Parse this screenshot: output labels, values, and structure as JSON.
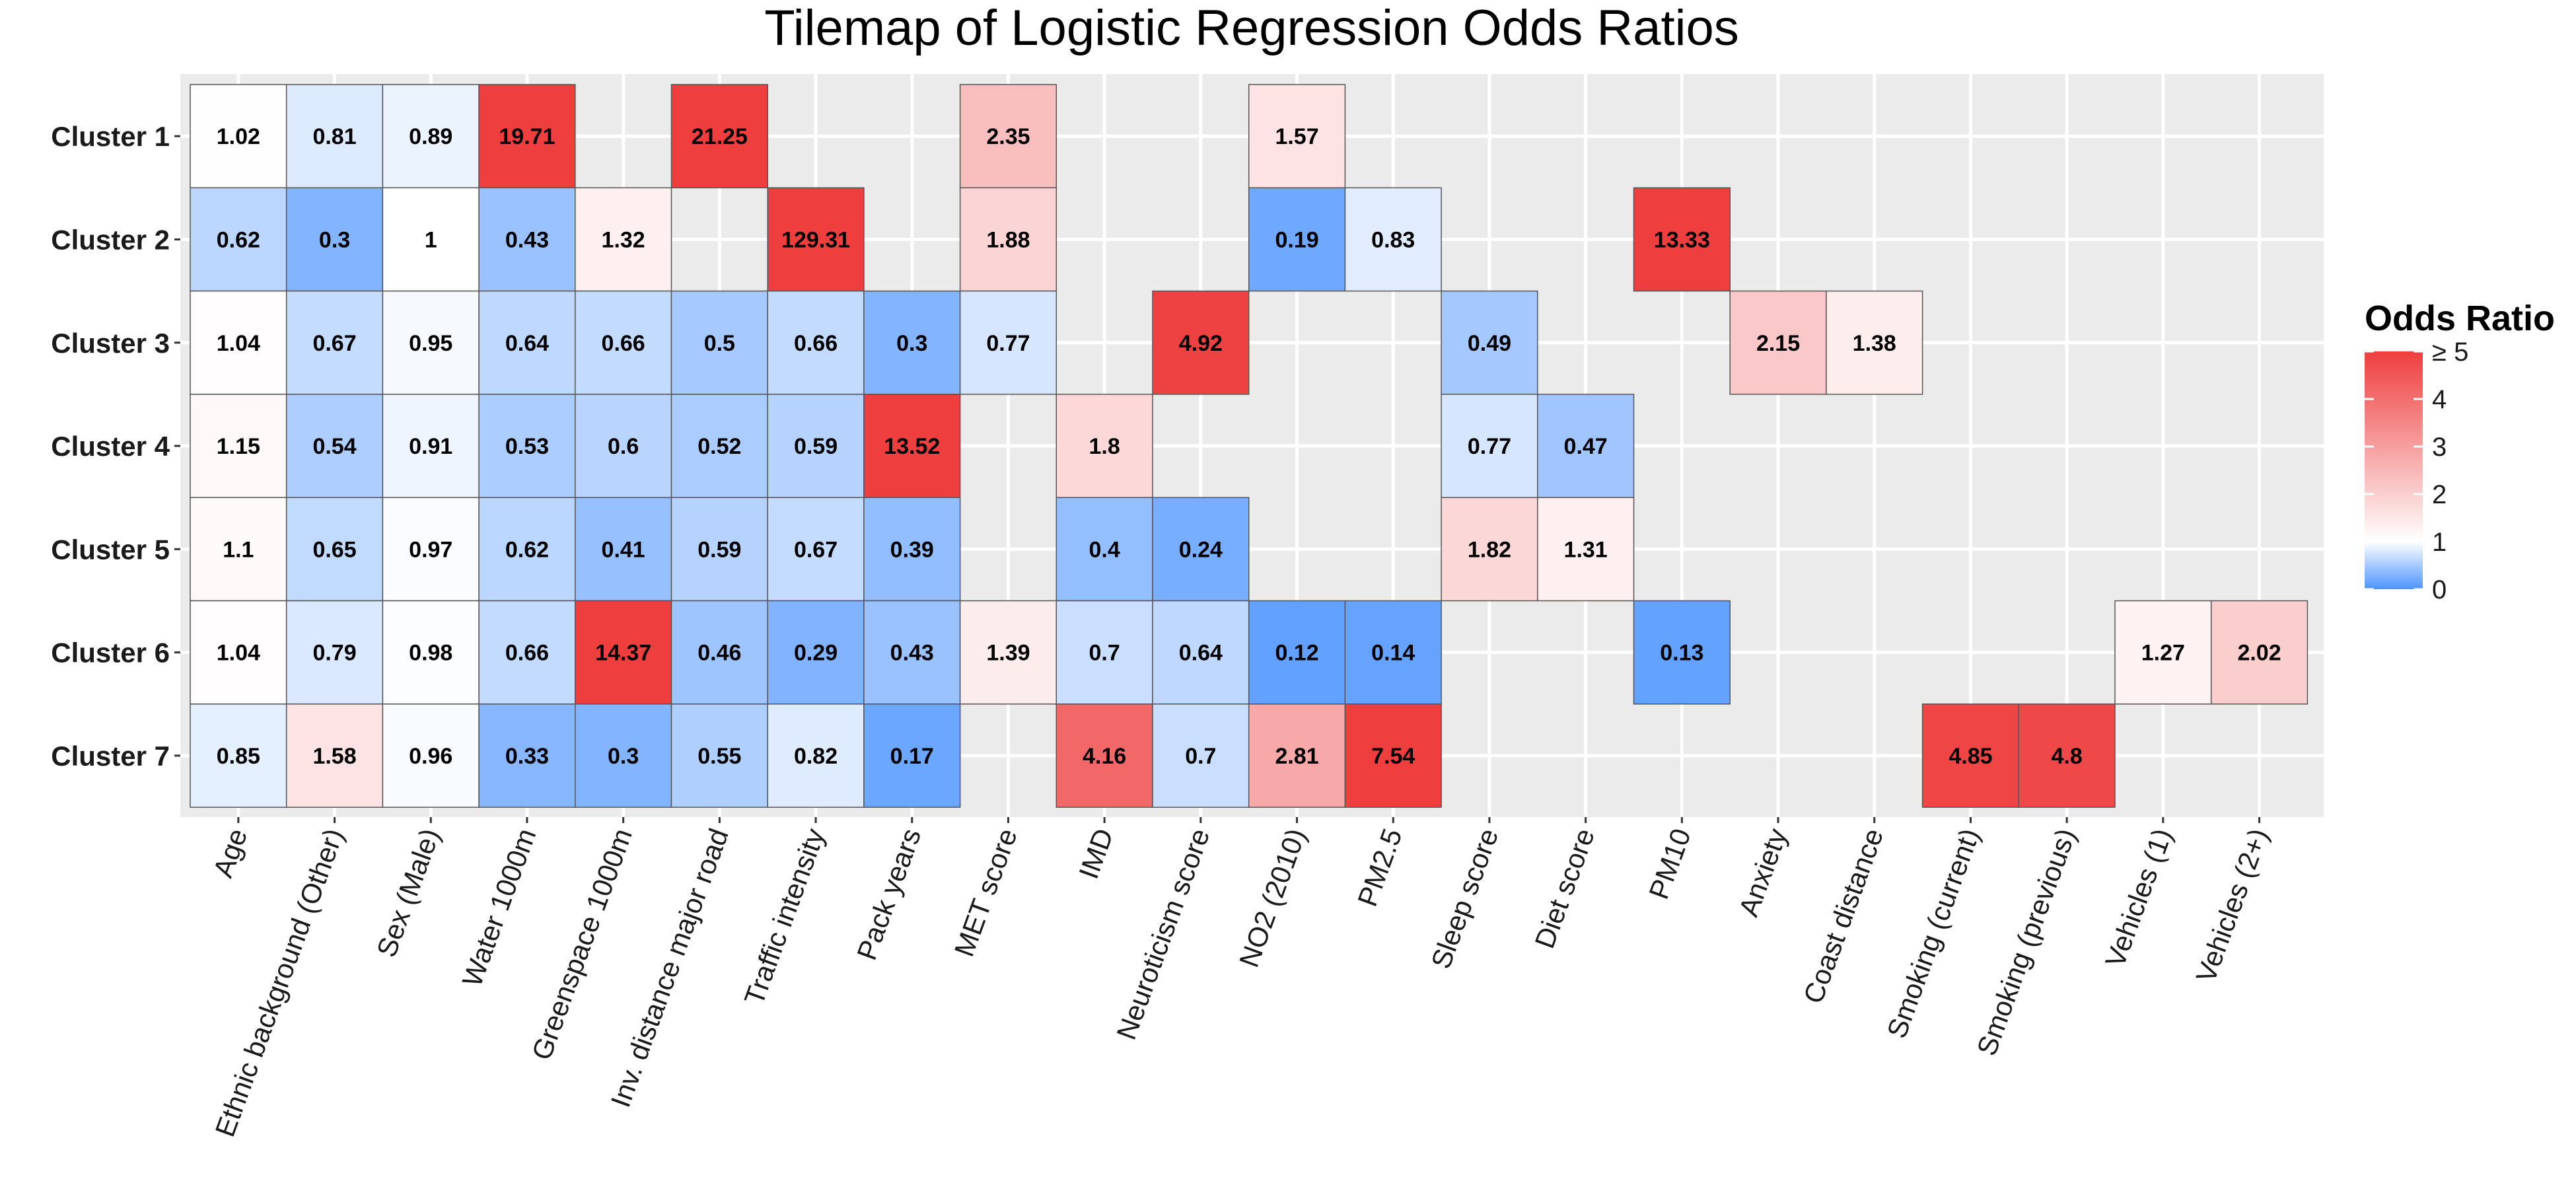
{
  "chart_data": {
    "type": "heatmap",
    "title": "Tilemap of Logistic Regression Odds Ratios",
    "xlabel": "",
    "ylabel": "",
    "rows": [
      "Cluster 1",
      "Cluster 2",
      "Cluster 3",
      "Cluster 4",
      "Cluster 5",
      "Cluster 6",
      "Cluster 7"
    ],
    "columns": [
      "Age",
      "Ethnic background (Other)",
      "Sex (Male)",
      "Water 1000m",
      "Greenspace 1000m",
      "Inv. distance major road",
      "Traffic intensity",
      "Pack years",
      "MET score",
      "IMD",
      "Neuroticism score",
      "NO2 (2010)",
      "PM2.5",
      "Sleep score",
      "Diet score",
      "PM10",
      "Anxiety",
      "Coast distance",
      "Smoking (current)",
      "Smoking (previous)",
      "Vehicles (1)",
      "Vehicles (2+)"
    ],
    "cells": [
      {
        "row": "Cluster 1",
        "col": "Age",
        "value": 1.02,
        "label": "1.02"
      },
      {
        "row": "Cluster 1",
        "col": "Ethnic background (Other)",
        "value": 0.81,
        "label": "0.81"
      },
      {
        "row": "Cluster 1",
        "col": "Sex (Male)",
        "value": 0.89,
        "label": "0.89"
      },
      {
        "row": "Cluster 1",
        "col": "Water 1000m",
        "value": 19.71,
        "label": "19.71"
      },
      {
        "row": "Cluster 1",
        "col": "Inv. distance major road",
        "value": 21.25,
        "label": "21.25"
      },
      {
        "row": "Cluster 1",
        "col": "MET score",
        "value": 2.35,
        "label": "2.35"
      },
      {
        "row": "Cluster 1",
        "col": "NO2 (2010)",
        "value": 1.57,
        "label": "1.57"
      },
      {
        "row": "Cluster 2",
        "col": "Age",
        "value": 0.62,
        "label": "0.62"
      },
      {
        "row": "Cluster 2",
        "col": "Ethnic background (Other)",
        "value": 0.3,
        "label": "0.3"
      },
      {
        "row": "Cluster 2",
        "col": "Sex (Male)",
        "value": 1,
        "label": "1"
      },
      {
        "row": "Cluster 2",
        "col": "Water 1000m",
        "value": 0.43,
        "label": "0.43"
      },
      {
        "row": "Cluster 2",
        "col": "Greenspace 1000m",
        "value": 1.32,
        "label": "1.32"
      },
      {
        "row": "Cluster 2",
        "col": "Traffic intensity",
        "value": 129.31,
        "label": "129.31"
      },
      {
        "row": "Cluster 2",
        "col": "MET score",
        "value": 1.88,
        "label": "1.88"
      },
      {
        "row": "Cluster 2",
        "col": "NO2 (2010)",
        "value": 0.19,
        "label": "0.19"
      },
      {
        "row": "Cluster 2",
        "col": "PM2.5",
        "value": 0.83,
        "label": "0.83"
      },
      {
        "row": "Cluster 2",
        "col": "PM10",
        "value": 13.33,
        "label": "13.33"
      },
      {
        "row": "Cluster 3",
        "col": "Age",
        "value": 1.04,
        "label": "1.04"
      },
      {
        "row": "Cluster 3",
        "col": "Ethnic background (Other)",
        "value": 0.67,
        "label": "0.67"
      },
      {
        "row": "Cluster 3",
        "col": "Sex (Male)",
        "value": 0.95,
        "label": "0.95"
      },
      {
        "row": "Cluster 3",
        "col": "Water 1000m",
        "value": 0.64,
        "label": "0.64"
      },
      {
        "row": "Cluster 3",
        "col": "Greenspace 1000m",
        "value": 0.66,
        "label": "0.66"
      },
      {
        "row": "Cluster 3",
        "col": "Inv. distance major road",
        "value": 0.5,
        "label": "0.5"
      },
      {
        "row": "Cluster 3",
        "col": "Traffic intensity",
        "value": 0.66,
        "label": "0.66"
      },
      {
        "row": "Cluster 3",
        "col": "Pack years",
        "value": 0.3,
        "label": "0.3"
      },
      {
        "row": "Cluster 3",
        "col": "MET score",
        "value": 0.77,
        "label": "0.77"
      },
      {
        "row": "Cluster 3",
        "col": "Neuroticism score",
        "value": 4.92,
        "label": "4.92"
      },
      {
        "row": "Cluster 3",
        "col": "Sleep score",
        "value": 0.49,
        "label": "0.49"
      },
      {
        "row": "Cluster 3",
        "col": "Anxiety",
        "value": 2.15,
        "label": "2.15"
      },
      {
        "row": "Cluster 3",
        "col": "Coast distance",
        "value": 1.38,
        "label": "1.38"
      },
      {
        "row": "Cluster 4",
        "col": "Age",
        "value": 1.15,
        "label": "1.15"
      },
      {
        "row": "Cluster 4",
        "col": "Ethnic background (Other)",
        "value": 0.54,
        "label": "0.54"
      },
      {
        "row": "Cluster 4",
        "col": "Sex (Male)",
        "value": 0.91,
        "label": "0.91"
      },
      {
        "row": "Cluster 4",
        "col": "Water 1000m",
        "value": 0.53,
        "label": "0.53"
      },
      {
        "row": "Cluster 4",
        "col": "Greenspace 1000m",
        "value": 0.6,
        "label": "0.6"
      },
      {
        "row": "Cluster 4",
        "col": "Inv. distance major road",
        "value": 0.52,
        "label": "0.52"
      },
      {
        "row": "Cluster 4",
        "col": "Traffic intensity",
        "value": 0.59,
        "label": "0.59"
      },
      {
        "row": "Cluster 4",
        "col": "Pack years",
        "value": 13.52,
        "label": "13.52"
      },
      {
        "row": "Cluster 4",
        "col": "IMD",
        "value": 1.8,
        "label": "1.8"
      },
      {
        "row": "Cluster 4",
        "col": "Sleep score",
        "value": 0.77,
        "label": "0.77"
      },
      {
        "row": "Cluster 4",
        "col": "Diet score",
        "value": 0.47,
        "label": "0.47"
      },
      {
        "row": "Cluster 5",
        "col": "Age",
        "value": 1.1,
        "label": "1.1"
      },
      {
        "row": "Cluster 5",
        "col": "Ethnic background (Other)",
        "value": 0.65,
        "label": "0.65"
      },
      {
        "row": "Cluster 5",
        "col": "Sex (Male)",
        "value": 0.97,
        "label": "0.97"
      },
      {
        "row": "Cluster 5",
        "col": "Water 1000m",
        "value": 0.62,
        "label": "0.62"
      },
      {
        "row": "Cluster 5",
        "col": "Greenspace 1000m",
        "value": 0.41,
        "label": "0.41"
      },
      {
        "row": "Cluster 5",
        "col": "Inv. distance major road",
        "value": 0.59,
        "label": "0.59"
      },
      {
        "row": "Cluster 5",
        "col": "Traffic intensity",
        "value": 0.67,
        "label": "0.67"
      },
      {
        "row": "Cluster 5",
        "col": "Pack years",
        "value": 0.39,
        "label": "0.39"
      },
      {
        "row": "Cluster 5",
        "col": "IMD",
        "value": 0.4,
        "label": "0.4"
      },
      {
        "row": "Cluster 5",
        "col": "Neuroticism score",
        "value": 0.24,
        "label": "0.24"
      },
      {
        "row": "Cluster 5",
        "col": "Sleep score",
        "value": 1.82,
        "label": "1.82"
      },
      {
        "row": "Cluster 5",
        "col": "Diet score",
        "value": 1.31,
        "label": "1.31"
      },
      {
        "row": "Cluster 6",
        "col": "Age",
        "value": 1.04,
        "label": "1.04"
      },
      {
        "row": "Cluster 6",
        "col": "Ethnic background (Other)",
        "value": 0.79,
        "label": "0.79"
      },
      {
        "row": "Cluster 6",
        "col": "Sex (Male)",
        "value": 0.98,
        "label": "0.98"
      },
      {
        "row": "Cluster 6",
        "col": "Water 1000m",
        "value": 0.66,
        "label": "0.66"
      },
      {
        "row": "Cluster 6",
        "col": "Greenspace 1000m",
        "value": 14.37,
        "label": "14.37"
      },
      {
        "row": "Cluster 6",
        "col": "Inv. distance major road",
        "value": 0.46,
        "label": "0.46"
      },
      {
        "row": "Cluster 6",
        "col": "Traffic intensity",
        "value": 0.29,
        "label": "0.29"
      },
      {
        "row": "Cluster 6",
        "col": "Pack years",
        "value": 0.43,
        "label": "0.43"
      },
      {
        "row": "Cluster 6",
        "col": "MET score",
        "value": 1.39,
        "label": "1.39"
      },
      {
        "row": "Cluster 6",
        "col": "IMD",
        "value": 0.7,
        "label": "0.7"
      },
      {
        "row": "Cluster 6",
        "col": "Neuroticism score",
        "value": 0.64,
        "label": "0.64"
      },
      {
        "row": "Cluster 6",
        "col": "NO2 (2010)",
        "value": 0.12,
        "label": "0.12"
      },
      {
        "row": "Cluster 6",
        "col": "PM2.5",
        "value": 0.14,
        "label": "0.14"
      },
      {
        "row": "Cluster 6",
        "col": "PM10",
        "value": 0.13,
        "label": "0.13"
      },
      {
        "row": "Cluster 6",
        "col": "Vehicles (1)",
        "value": 1.27,
        "label": "1.27"
      },
      {
        "row": "Cluster 6",
        "col": "Vehicles (2+)",
        "value": 2.02,
        "label": "2.02"
      },
      {
        "row": "Cluster 7",
        "col": "Age",
        "value": 0.85,
        "label": "0.85"
      },
      {
        "row": "Cluster 7",
        "col": "Ethnic background (Other)",
        "value": 1.58,
        "label": "1.58"
      },
      {
        "row": "Cluster 7",
        "col": "Sex (Male)",
        "value": 0.96,
        "label": "0.96"
      },
      {
        "row": "Cluster 7",
        "col": "Water 1000m",
        "value": 0.33,
        "label": "0.33"
      },
      {
        "row": "Cluster 7",
        "col": "Greenspace 1000m",
        "value": 0.3,
        "label": "0.3"
      },
      {
        "row": "Cluster 7",
        "col": "Inv. distance major road",
        "value": 0.55,
        "label": "0.55"
      },
      {
        "row": "Cluster 7",
        "col": "Traffic intensity",
        "value": 0.82,
        "label": "0.82"
      },
      {
        "row": "Cluster 7",
        "col": "Pack years",
        "value": 0.17,
        "label": "0.17"
      },
      {
        "row": "Cluster 7",
        "col": "IMD",
        "value": 4.16,
        "label": "4.16"
      },
      {
        "row": "Cluster 7",
        "col": "Neuroticism score",
        "value": 0.7,
        "label": "0.7"
      },
      {
        "row": "Cluster 7",
        "col": "NO2 (2010)",
        "value": 2.81,
        "label": "2.81"
      },
      {
        "row": "Cluster 7",
        "col": "PM2.5",
        "value": 7.54,
        "label": "7.54"
      },
      {
        "row": "Cluster 7",
        "col": "Smoking (current)",
        "value": 4.85,
        "label": "4.85"
      },
      {
        "row": "Cluster 7",
        "col": "Smoking (previous)",
        "value": 4.8,
        "label": "4.8"
      }
    ],
    "legend": {
      "title": "Odds Ratio",
      "placement": "right",
      "ticks": [
        {
          "value": 5,
          "label": "≥ 5"
        },
        {
          "value": 4,
          "label": "4"
        },
        {
          "value": 3,
          "label": "3"
        },
        {
          "value": 2,
          "label": "2"
        },
        {
          "value": 1,
          "label": "1"
        },
        {
          "value": 0,
          "label": "0"
        }
      ],
      "range": [
        0,
        5
      ]
    },
    "colors": {
      "low": "#4d94ff",
      "mid": "#ffffff",
      "high": "#ee3e3e",
      "panel_background": "#ebebeb",
      "grid": "#ffffff",
      "tile_border": "#555555"
    },
    "grid": true
  }
}
